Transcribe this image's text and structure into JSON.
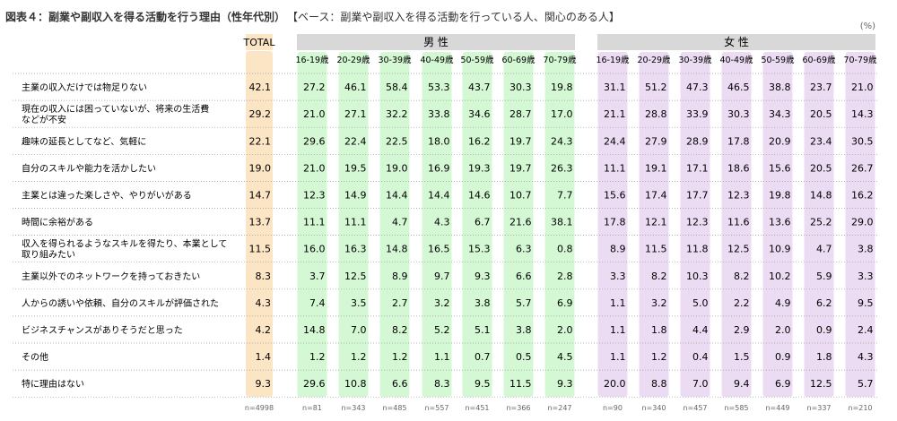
{
  "figure": {
    "title": "図表４：副業や副収入を得る活動を行う理由（性年代別）",
    "base": "【ベース：副業や副収入を得る活動を行っている人、関心のある人】",
    "unit": "(%)"
  },
  "colors": {
    "total": "#fbe5c4",
    "male": "#d4f8d4",
    "female": "#ecdcf3",
    "header": "#d8d8d8"
  },
  "chart_data": {
    "type": "table",
    "groups": [
      {
        "name": "TOTAL",
        "columns": [
          "TOTAL"
        ]
      },
      {
        "name": "男 性",
        "columns": [
          "16-19歳",
          "20-29歳",
          "30-39歳",
          "40-49歳",
          "50-59歳",
          "60-69歳",
          "70-79歳"
        ]
      },
      {
        "name": "女 性",
        "columns": [
          "16-19歳",
          "20-29歳",
          "30-39歳",
          "40-49歳",
          "50-59歳",
          "60-69歳",
          "70-79歳"
        ]
      }
    ],
    "sample_sizes": [
      "n=4998",
      "n=81",
      "n=343",
      "n=485",
      "n=557",
      "n=451",
      "n=366",
      "n=247",
      "n=90",
      "n=340",
      "n=457",
      "n=585",
      "n=449",
      "n=337",
      "n=210"
    ],
    "rows": [
      {
        "label": [
          "主業の収入だけでは物足りない"
        ],
        "values": [
          42.1,
          27.2,
          46.1,
          58.4,
          53.3,
          43.7,
          30.3,
          19.8,
          31.1,
          51.2,
          47.3,
          46.5,
          38.8,
          23.7,
          21.0
        ]
      },
      {
        "label": [
          "現在の収入には困っていないが、将来の生活費",
          "などが不安"
        ],
        "values": [
          29.2,
          21.0,
          27.1,
          32.2,
          33.8,
          34.6,
          28.7,
          17.0,
          21.1,
          28.8,
          33.9,
          30.3,
          34.3,
          20.5,
          14.3
        ]
      },
      {
        "label": [
          "趣味の延長としてなど、気軽に"
        ],
        "values": [
          22.1,
          29.6,
          22.4,
          22.5,
          18.0,
          16.2,
          19.7,
          24.3,
          24.4,
          27.9,
          28.9,
          17.8,
          20.9,
          23.4,
          30.5
        ]
      },
      {
        "label": [
          "自分のスキルや能力を活かしたい"
        ],
        "values": [
          19.0,
          21.0,
          19.5,
          19.0,
          16.9,
          19.3,
          19.7,
          26.3,
          11.1,
          19.1,
          17.1,
          18.6,
          15.6,
          20.5,
          26.7
        ]
      },
      {
        "label": [
          "主業とは違った楽しさや、やりがいがある"
        ],
        "values": [
          14.7,
          12.3,
          14.9,
          14.4,
          14.4,
          14.6,
          10.7,
          7.7,
          15.6,
          17.4,
          17.7,
          12.3,
          19.8,
          14.8,
          16.2
        ]
      },
      {
        "label": [
          "時間に余裕がある"
        ],
        "values": [
          13.7,
          11.1,
          11.1,
          4.7,
          4.3,
          6.7,
          21.6,
          38.1,
          17.8,
          12.1,
          12.3,
          11.6,
          13.6,
          25.2,
          29.0
        ]
      },
      {
        "label": [
          "収入を得られるようなスキルを得たり、本業として",
          "取り組みたい"
        ],
        "values": [
          11.5,
          16.0,
          16.3,
          14.8,
          16.5,
          15.3,
          6.3,
          0.8,
          8.9,
          11.5,
          11.8,
          12.5,
          10.9,
          4.7,
          3.8
        ]
      },
      {
        "label": [
          "主業以外でのネットワークを持っておきたい"
        ],
        "values": [
          8.3,
          3.7,
          12.5,
          8.9,
          9.7,
          9.3,
          6.6,
          2.8,
          3.3,
          8.2,
          10.3,
          8.2,
          10.2,
          5.9,
          3.3
        ]
      },
      {
        "label": [
          "人からの誘いや依頼、自分のスキルが評価された"
        ],
        "values": [
          4.3,
          7.4,
          3.5,
          2.7,
          3.2,
          3.8,
          5.7,
          6.9,
          1.1,
          3.2,
          5.0,
          2.2,
          4.9,
          6.2,
          9.5
        ]
      },
      {
        "label": [
          "ビジネスチャンスがありそうだと思った"
        ],
        "values": [
          4.2,
          14.8,
          7.0,
          8.2,
          5.2,
          5.1,
          3.8,
          2.0,
          1.1,
          1.8,
          4.4,
          2.9,
          2.0,
          0.9,
          2.4
        ]
      },
      {
        "label": [
          "その他"
        ],
        "values": [
          1.4,
          1.2,
          1.2,
          1.2,
          1.1,
          0.7,
          0.5,
          4.5,
          1.1,
          1.2,
          0.4,
          1.5,
          0.9,
          1.8,
          4.3
        ]
      },
      {
        "label": [
          "特に理由はない"
        ],
        "values": [
          9.3,
          29.6,
          10.8,
          6.6,
          8.3,
          9.5,
          11.5,
          9.3,
          20.0,
          8.8,
          7.0,
          9.4,
          6.9,
          12.5,
          5.7
        ]
      }
    ]
  }
}
